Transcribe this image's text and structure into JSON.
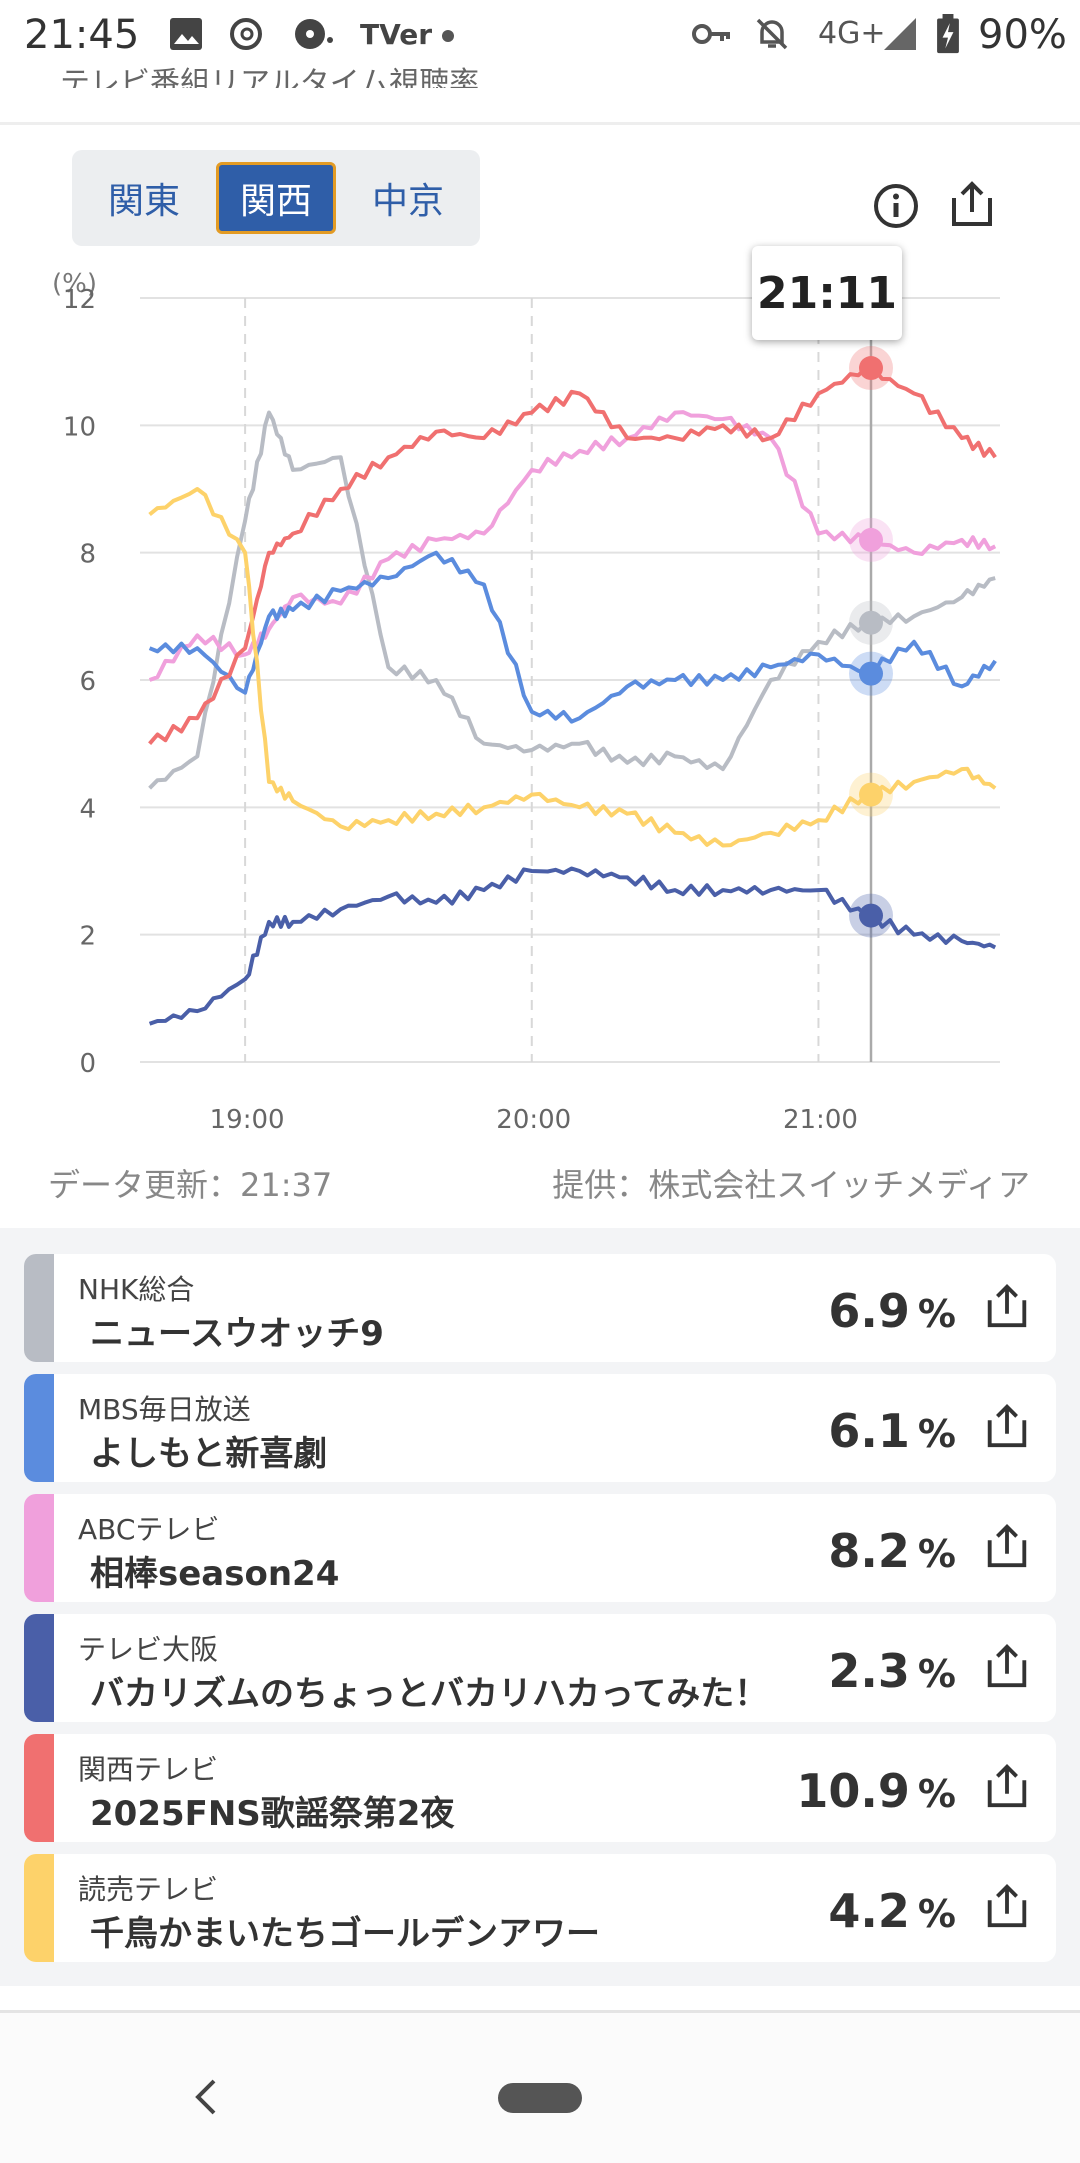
{
  "status_bar": {
    "time": "21:45",
    "network": "4G+",
    "battery": "90%",
    "icons": [
      "image-icon",
      "threads-icon",
      "cast-icon",
      "tver-icon",
      "dot-icon",
      "key-icon",
      "bell-off-icon",
      "signal-icon",
      "battery-icon"
    ],
    "tver_label": "TVer"
  },
  "page_title": "テレビ番組リアルタイム視聴率",
  "region_tabs": [
    {
      "label": "関東",
      "active": false
    },
    {
      "label": "関西",
      "active": true
    },
    {
      "label": "中京",
      "active": false
    }
  ],
  "tooltip_time": "21:11",
  "meta": {
    "updated": "データ更新：21:37",
    "provider": "提供：株式会社スイッチメディア"
  },
  "chart_data": {
    "type": "line",
    "ylabel": "(%)",
    "ylim": [
      0,
      12
    ],
    "y_ticks": [
      "0",
      "2",
      "4",
      "6",
      "8",
      "10",
      "12"
    ],
    "x_ticks": [
      "19:00",
      "20:00",
      "21:00"
    ],
    "x_range": [
      "18:38",
      "21:38"
    ],
    "grid": true,
    "cursor_time": "21:11",
    "x": [
      "18:40",
      "18:50",
      "19:00",
      "19:05",
      "19:10",
      "19:20",
      "19:30",
      "19:40",
      "19:50",
      "20:00",
      "20:10",
      "20:20",
      "20:30",
      "20:40",
      "20:50",
      "21:00",
      "21:10",
      "21:20",
      "21:30",
      "21:37"
    ],
    "series": [
      {
        "name": "NHK総合",
        "color": "#b8bcc4",
        "values": [
          4.3,
          4.8,
          8.5,
          10.2,
          9.3,
          9.5,
          6.2,
          6.0,
          5.0,
          4.9,
          5.0,
          4.7,
          4.8,
          4.6,
          6.0,
          6.6,
          6.9,
          7.0,
          7.3,
          7.6
        ]
      },
      {
        "name": "MBS毎日放送",
        "color": "#5b8cde",
        "values": [
          6.5,
          6.5,
          5.8,
          7.0,
          7.1,
          7.4,
          7.6,
          8.0,
          7.5,
          5.5,
          5.4,
          5.9,
          6.0,
          6.0,
          6.2,
          6.4,
          6.1,
          6.6,
          5.9,
          6.3
        ]
      },
      {
        "name": "ABCテレビ",
        "color": "#f0a0dc",
        "values": [
          6.0,
          6.7,
          6.4,
          6.8,
          7.3,
          7.2,
          7.9,
          8.2,
          8.3,
          9.3,
          9.6,
          9.8,
          10.2,
          10.1,
          9.8,
          8.3,
          8.2,
          8.0,
          8.2,
          8.1
        ]
      },
      {
        "name": "テレビ大阪",
        "color": "#4a5fa8",
        "values": [
          0.6,
          0.8,
          1.3,
          2.2,
          2.2,
          2.4,
          2.6,
          2.5,
          2.7,
          3.0,
          3.0,
          2.9,
          2.7,
          2.7,
          2.7,
          2.7,
          2.3,
          2.0,
          1.9,
          1.8
        ]
      },
      {
        "name": "関西テレビ",
        "color": "#f07070",
        "values": [
          5.0,
          5.4,
          6.5,
          8.0,
          8.3,
          9.0,
          9.5,
          9.9,
          9.8,
          10.2,
          10.5,
          9.8,
          9.8,
          10.0,
          9.8,
          10.5,
          10.9,
          10.5,
          9.8,
          9.5
        ]
      },
      {
        "name": "読売テレビ",
        "color": "#fdd26a",
        "values": [
          8.6,
          9.0,
          8.0,
          4.4,
          4.1,
          3.7,
          3.8,
          3.9,
          4.0,
          4.2,
          4.0,
          3.9,
          3.6,
          3.4,
          3.6,
          3.8,
          4.2,
          4.4,
          4.6,
          4.3
        ]
      }
    ]
  },
  "programs": [
    {
      "station": "NHK総合",
      "title": "ニュースウオッチ9",
      "rating": "6.9",
      "unit": "%",
      "color": "#b8bcc4"
    },
    {
      "station": "MBS毎日放送",
      "title": "よしもと新喜劇",
      "rating": "6.1",
      "unit": "%",
      "color": "#5b8cde"
    },
    {
      "station": "ABCテレビ",
      "title": "相棒season24",
      "rating": "8.2",
      "unit": "%",
      "color": "#f0a0dc"
    },
    {
      "station": "テレビ大阪",
      "title": "バカリズムのちょっとバカリハカってみた！",
      "rating": "2.3",
      "unit": "%",
      "color": "#4a5fa8"
    },
    {
      "station": "関西テレビ",
      "title": "2025FNS歌謡祭第2夜",
      "rating": "10.9",
      "unit": "%",
      "color": "#f07070"
    },
    {
      "station": "読売テレビ",
      "title": "千鳥かまいたちゴールデンアワー",
      "rating": "4.2",
      "unit": "%",
      "color": "#fdd26a"
    }
  ]
}
